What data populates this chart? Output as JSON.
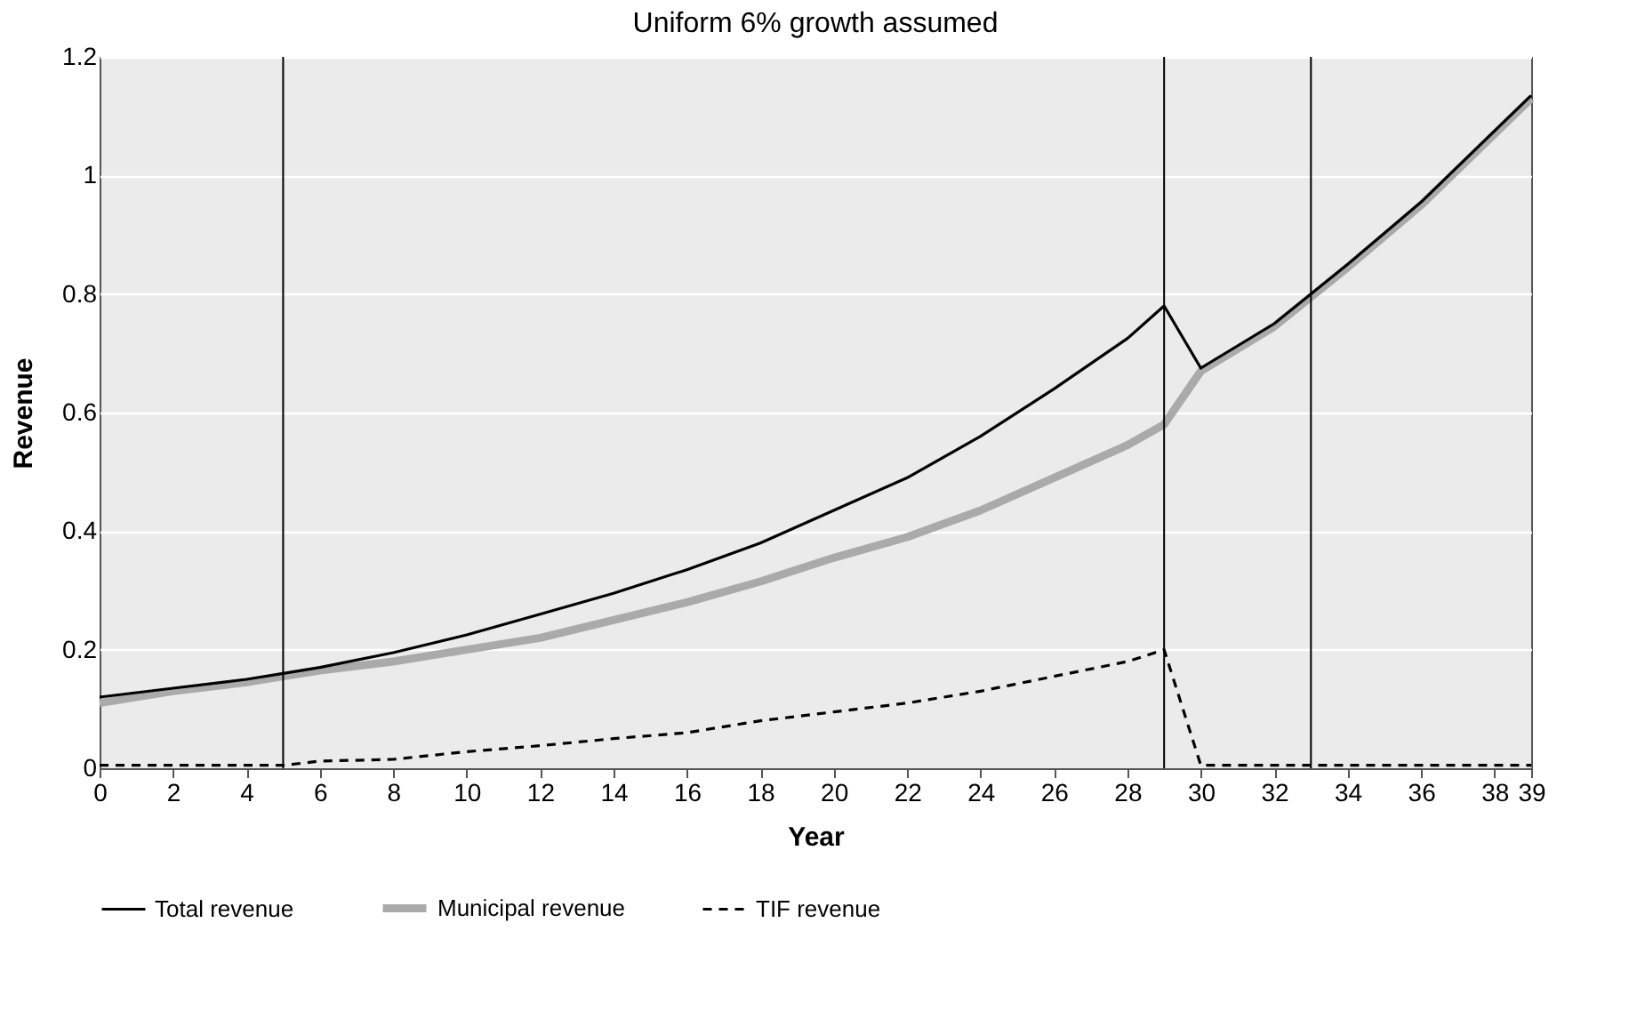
{
  "chart_data": {
    "type": "line",
    "title": "Uniform 6% growth assumed",
    "xlabel": "Year",
    "ylabel": "Revenue",
    "xlim": [
      0,
      39
    ],
    "xticks": [
      0,
      2,
      4,
      6,
      8,
      10,
      12,
      14,
      16,
      18,
      20,
      22,
      24,
      26,
      28,
      30,
      32,
      34,
      36,
      38,
      39
    ],
    "ylim": [
      0,
      1.2
    ],
    "yticks": [
      0,
      0.2,
      0.4,
      0.6,
      0.8,
      1,
      1.2
    ],
    "grid": "y",
    "legend": "bottom",
    "marker": "none",
    "ref_lines": [
      {
        "axis": "x",
        "value": 5,
        "color": "#000000"
      },
      {
        "axis": "x",
        "value": 29,
        "color": "#000000"
      },
      {
        "axis": "x",
        "value": 33,
        "color": "#000000"
      }
    ],
    "series": [
      {
        "name": "Total revenue",
        "color": "#000000",
        "line_style": "solid",
        "x": [
          0,
          2,
          4,
          5,
          6,
          8,
          10,
          12,
          14,
          16,
          18,
          20,
          22,
          24,
          26,
          28,
          29,
          30,
          32,
          34,
          36,
          38,
          39
        ],
        "values": [
          0.12,
          0.135,
          0.15,
          0.16,
          0.17,
          0.195,
          0.225,
          0.26,
          0.295,
          0.335,
          0.38,
          0.435,
          0.49,
          0.56,
          0.64,
          0.725,
          0.78,
          0.675,
          0.75,
          0.85,
          0.955,
          1.075,
          1.135
        ]
      },
      {
        "name": "Municipal revenue",
        "color": "#aaaaaa",
        "line_style": "solid",
        "x": [
          0,
          2,
          4,
          5,
          6,
          8,
          10,
          12,
          14,
          16,
          18,
          20,
          22,
          24,
          26,
          28,
          29,
          30,
          32,
          34,
          36,
          38,
          39
        ],
        "values": [
          0.11,
          0.13,
          0.145,
          0.155,
          0.165,
          0.18,
          0.2,
          0.22,
          0.25,
          0.28,
          0.315,
          0.355,
          0.39,
          0.435,
          0.49,
          0.545,
          0.58,
          0.67,
          0.745,
          0.845,
          0.95,
          1.07,
          1.13
        ]
      },
      {
        "name": "TIF revenue",
        "color": "#000000",
        "line_style": "dashed",
        "x": [
          0,
          4,
          5,
          6,
          8,
          10,
          12,
          14,
          16,
          18,
          20,
          22,
          24,
          26,
          28,
          29,
          30,
          39
        ],
        "values": [
          0.005,
          0.005,
          0.005,
          0.012,
          0.015,
          0.028,
          0.038,
          0.05,
          0.06,
          0.08,
          0.095,
          0.11,
          0.13,
          0.155,
          0.18,
          0.2,
          0.005,
          0.005
        ]
      }
    ]
  }
}
